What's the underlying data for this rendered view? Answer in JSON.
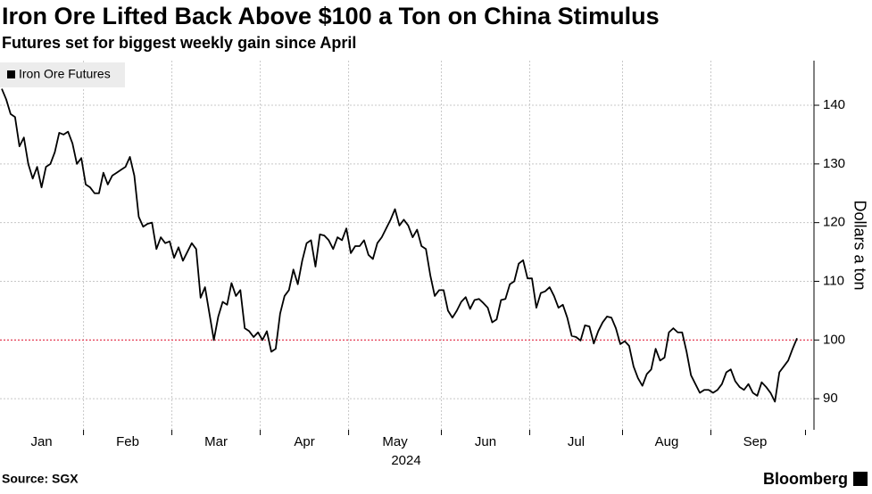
{
  "chart_data": {
    "type": "line",
    "title": "Iron Ore Lifted Back Above $100 a Ton on China Stimulus",
    "subtitle": "Futures set for biggest weekly gain since April",
    "y_label": "Dollars a ton",
    "x_label": "2024",
    "source": "Source: SGX",
    "brand": "Bloomberg",
    "categories": [
      "Jan",
      null,
      null,
      null,
      null,
      null,
      null,
      null,
      null,
      null,
      null,
      null,
      null,
      null,
      null,
      null,
      null,
      null,
      null,
      "Feb",
      null,
      null,
      null,
      null,
      null,
      null,
      null,
      null,
      null,
      null,
      null,
      null,
      null,
      null,
      null,
      null,
      null,
      null,
      null,
      "Mar",
      null,
      null,
      null,
      null,
      null,
      null,
      null,
      null,
      null,
      null,
      null,
      null,
      null,
      null,
      null,
      null,
      null,
      null,
      null,
      "Apr",
      null,
      null,
      null,
      null,
      null,
      null,
      null,
      null,
      null,
      null,
      null,
      null,
      null,
      null,
      null,
      null,
      null,
      null,
      null,
      "May",
      null,
      null,
      null,
      null,
      null,
      null,
      null,
      null,
      null,
      null,
      null,
      null,
      null,
      null,
      null,
      null,
      null,
      null,
      null,
      null,
      "Jun",
      null,
      null,
      null,
      null,
      null,
      null,
      null,
      null,
      null,
      null,
      null,
      null,
      null,
      null,
      null,
      null,
      null,
      null,
      null,
      "Jul",
      null,
      null,
      null,
      null,
      null,
      null,
      null,
      null,
      null,
      null,
      null,
      null,
      null,
      null,
      null,
      null,
      null,
      null,
      null,
      null,
      "Aug",
      null,
      null,
      null,
      null,
      null,
      null,
      null,
      null,
      null,
      null,
      null,
      null,
      null,
      null,
      null,
      null,
      null,
      null,
      null,
      "Sep",
      null,
      null,
      null,
      null,
      null,
      null,
      null,
      null,
      null,
      null,
      null,
      null,
      null,
      null,
      null,
      null,
      null,
      null,
      null
    ],
    "series": [
      {
        "name": "Iron Ore Futures",
        "color": "#000000",
        "values": [
          142.8,
          141,
          138.5,
          138,
          133,
          134.5,
          130,
          127.5,
          129.5,
          126,
          129.5,
          130,
          132,
          135.3,
          135,
          135.5,
          133.5,
          130,
          131,
          126.5,
          126,
          125,
          125,
          128.5,
          126.5,
          128,
          128.5,
          129,
          129.5,
          131.2,
          128,
          121,
          119.3,
          119.8,
          120,
          115.5,
          117.5,
          116.5,
          116.8,
          114,
          115.8,
          113.5,
          115,
          116.5,
          115.5,
          107.2,
          109,
          104.5,
          100,
          104,
          106.5,
          106,
          109.7,
          107.5,
          108.5,
          102,
          101.5,
          100.5,
          101.3,
          100,
          101.5,
          98,
          98.5,
          104.5,
          107.5,
          108.5,
          112,
          109.5,
          113.5,
          116.5,
          117,
          112.5,
          118,
          117.8,
          117,
          115.5,
          117.5,
          117,
          119,
          114.8,
          116,
          116,
          117,
          114.5,
          113.8,
          116.5,
          117.5,
          119,
          120.5,
          122.3,
          119.5,
          120.5,
          119.5,
          117.5,
          118.8,
          116,
          115.5,
          111,
          107.5,
          108.5,
          108.5,
          105,
          103.8,
          105,
          106.5,
          107.3,
          105.3,
          106.8,
          107,
          106.3,
          105.5,
          103,
          103.5,
          106.8,
          107,
          109.5,
          110,
          113,
          113.6,
          110.5,
          110.5,
          105.5,
          108,
          108.3,
          109,
          107.5,
          105.5,
          106,
          103.8,
          100.7,
          100.5,
          99.9,
          102.5,
          102.3,
          99.4,
          101.5,
          103,
          104,
          103.8,
          102,
          99.3,
          99.8,
          99,
          95.5,
          93.5,
          92.2,
          94.2,
          95,
          98.5,
          96.5,
          97,
          101.3,
          102,
          101.3,
          101.3,
          98,
          94,
          92.5,
          91,
          91.5,
          91.5,
          91,
          91.5,
          92.5,
          94.5,
          95,
          93,
          92,
          91.5,
          92.5,
          91,
          90.5,
          92.8,
          92,
          91,
          89.5,
          94.5,
          95.5,
          96.5,
          98.5,
          100.3
        ]
      }
    ],
    "ylim": [
      84.7,
      147.6
    ],
    "yticks": [
      90,
      100,
      110,
      120,
      130,
      140
    ],
    "reference_line": {
      "value": 100,
      "color": "#e8304a"
    },
    "grid": true,
    "legend": "top-left"
  }
}
